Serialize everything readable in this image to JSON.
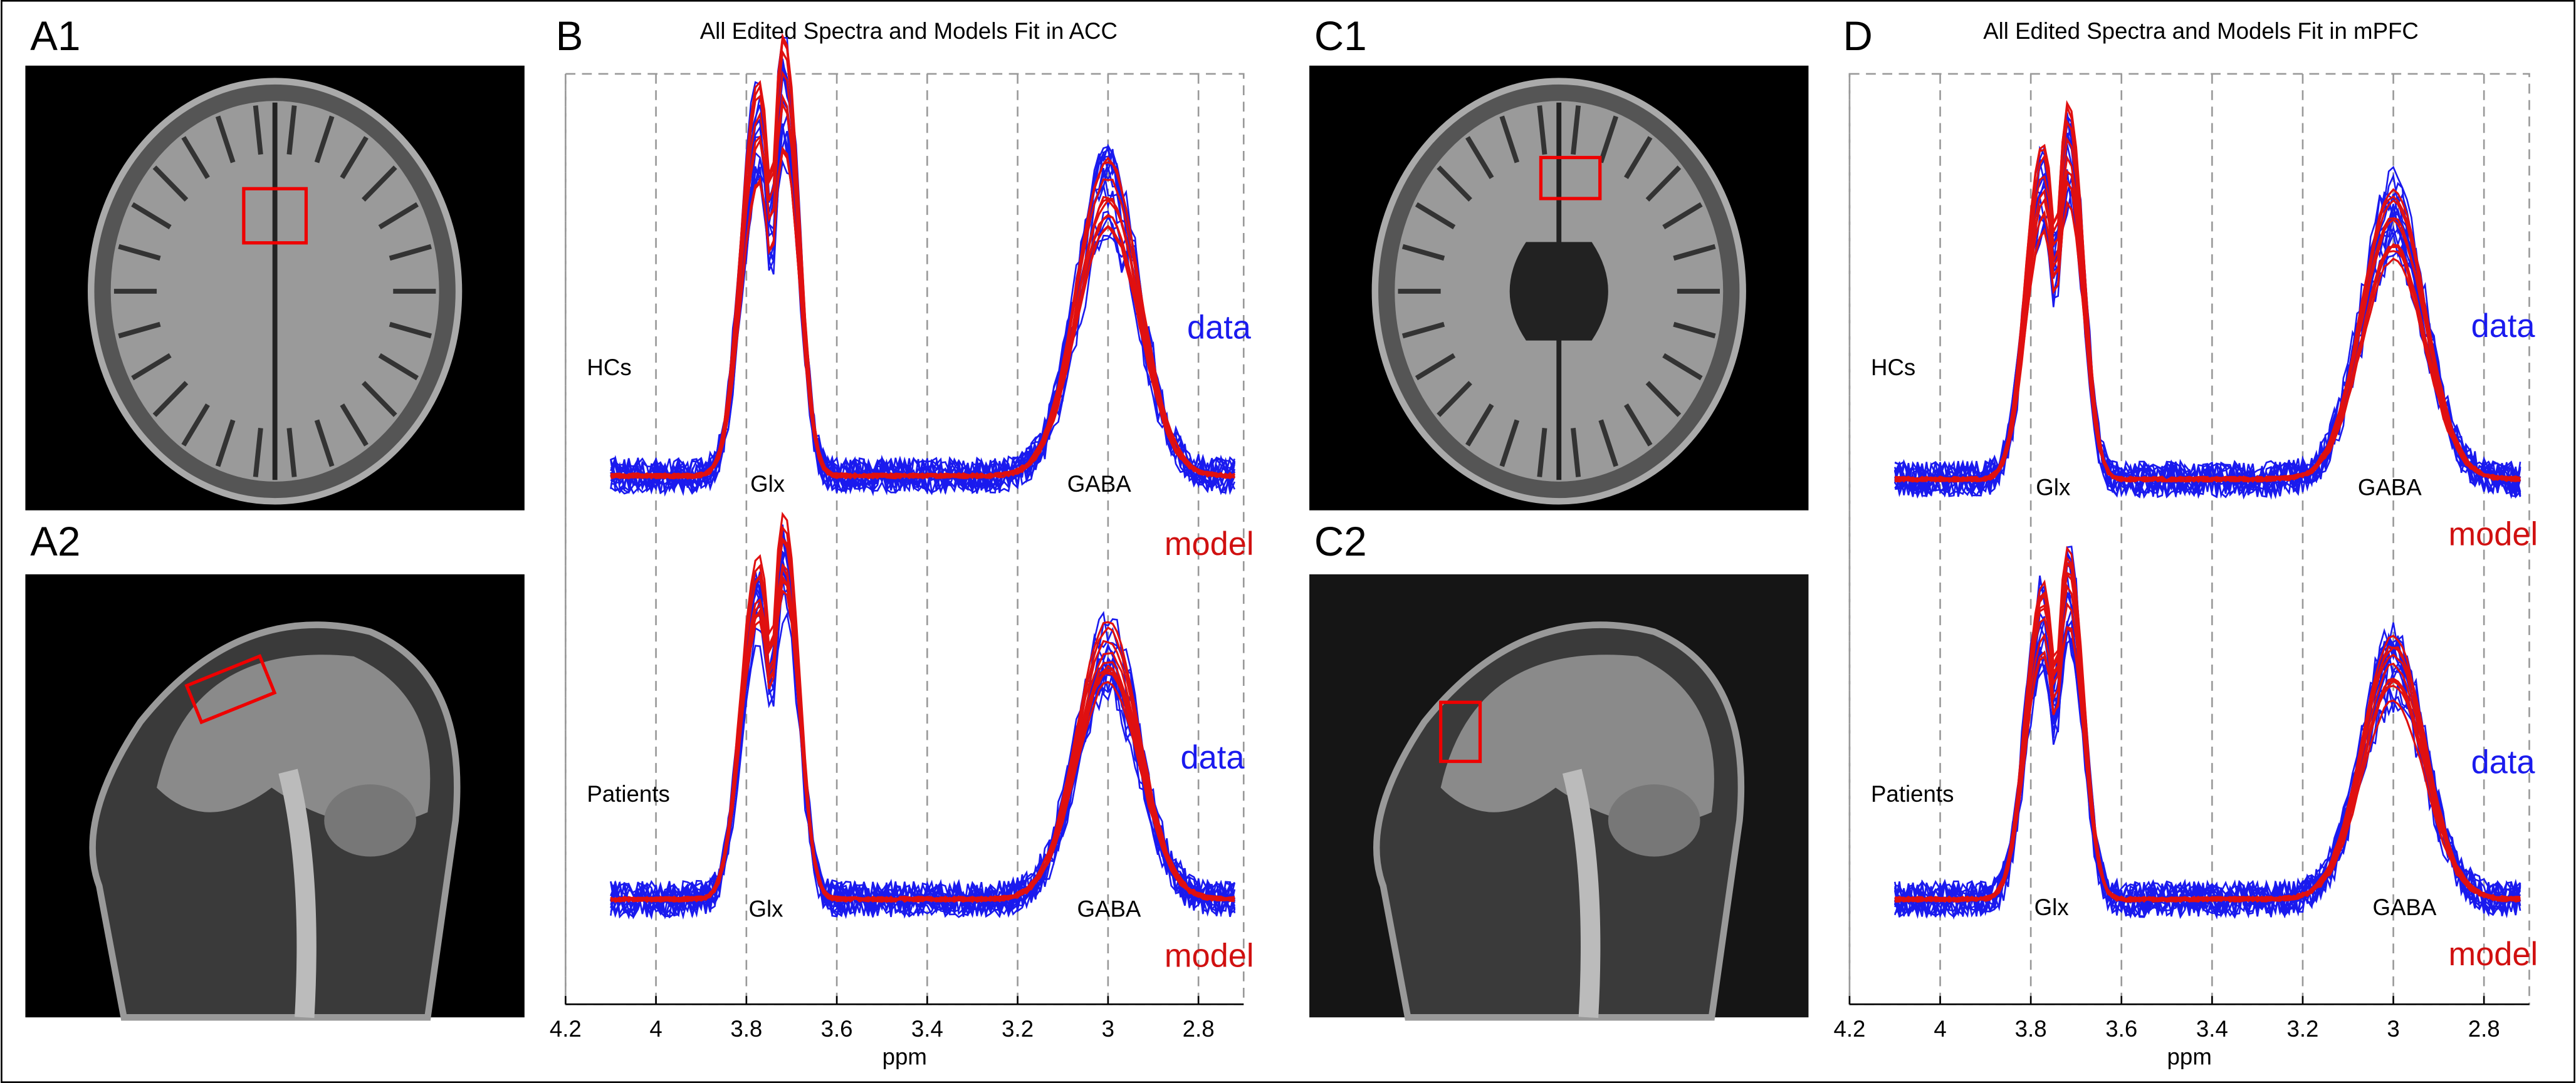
{
  "images": [
    {
      "label": "A1"
    },
    {
      "label": "A2"
    },
    {
      "label": "C1"
    },
    {
      "label": "C2"
    }
  ],
  "spectra": [
    {
      "label": "B",
      "title": "All Edited Spectra and Models Fit in ACC",
      "xlabel": "ppm",
      "xlim": [
        4.2,
        2.7
      ],
      "xticks": [
        4.2,
        4,
        3.8,
        3.6,
        3.4,
        3.2,
        3,
        2.8
      ],
      "groups": [
        "HCs",
        "Patients"
      ],
      "peaks": [
        "Glx",
        "GABA"
      ],
      "legend": [
        "data",
        "model"
      ]
    },
    {
      "label": "D",
      "title": "All Edited Spectra and Models Fit in mPFC",
      "xlabel": "ppm",
      "xlim": [
        4.2,
        2.7
      ],
      "xticks": [
        4.2,
        4,
        3.8,
        3.6,
        3.4,
        3.2,
        3,
        2.8
      ],
      "groups": [
        "HCs",
        "Patients"
      ],
      "peaks": [
        "Glx",
        "GABA"
      ],
      "legend": [
        "data",
        "model"
      ]
    }
  ]
}
